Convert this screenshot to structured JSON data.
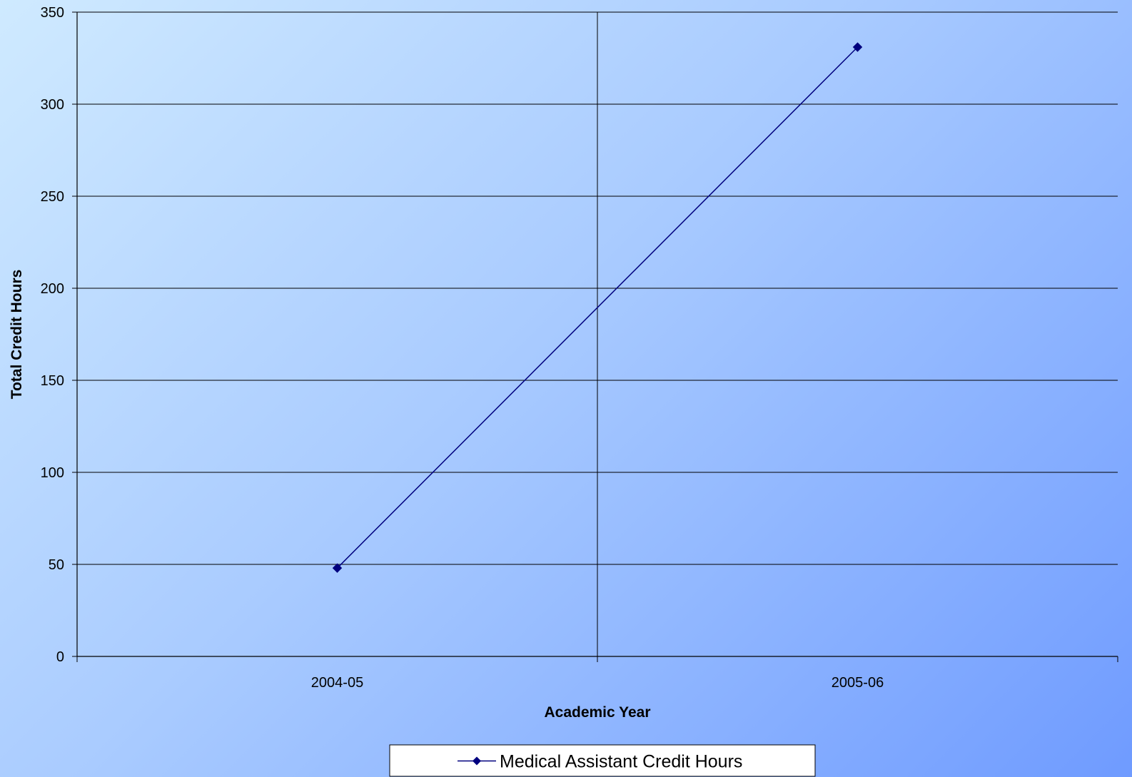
{
  "chart_data": {
    "type": "line",
    "categories": [
      "2004-05",
      "2005-06"
    ],
    "series": [
      {
        "name": "Medical Assistant Credit Hours",
        "values": [
          48,
          331
        ],
        "color": "#00007f",
        "marker": "diamond"
      }
    ],
    "title": "",
    "xlabel": "Academic Year",
    "ylabel": "Total Credit Hours",
    "ylim": [
      0,
      350
    ],
    "yticks": [
      "0",
      "50",
      "100",
      "150",
      "200",
      "250",
      "300",
      "350"
    ],
    "grid": true,
    "legend_position": "bottom"
  }
}
